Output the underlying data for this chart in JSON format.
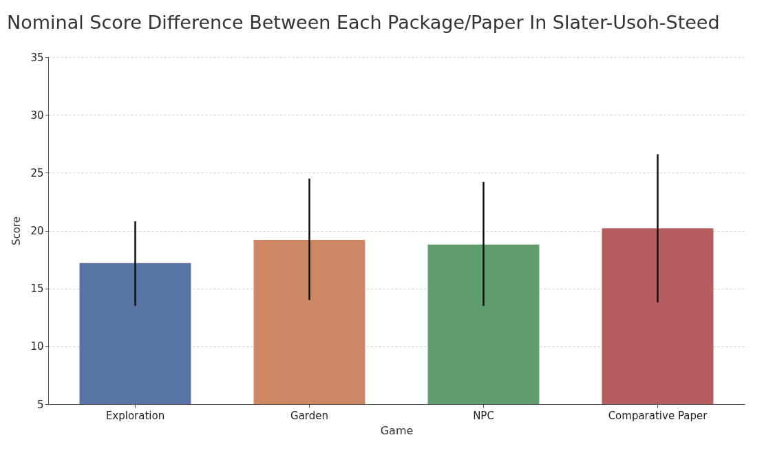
{
  "chart_data": {
    "type": "bar",
    "title": "Nominal Score Difference Between Each Package/Paper In Slater-Usoh-Steed",
    "xlabel": "Game",
    "ylabel": "Score",
    "categories": [
      "Exploration",
      "Garden",
      "NPC",
      "Comparative Paper"
    ],
    "values": [
      17.2,
      19.2,
      18.8,
      20.2
    ],
    "colors": [
      "#5874a4",
      "#cc8762",
      "#5f9d6e",
      "#b45c5f"
    ],
    "errors": [
      [
        13.5,
        20.8
      ],
      [
        14.0,
        24.5
      ],
      [
        13.5,
        24.2
      ],
      [
        13.8,
        26.6
      ]
    ],
    "ylim": [
      5,
      35
    ],
    "yticks": [
      5,
      10,
      15,
      20,
      25,
      30,
      35
    ],
    "grid": "y"
  }
}
